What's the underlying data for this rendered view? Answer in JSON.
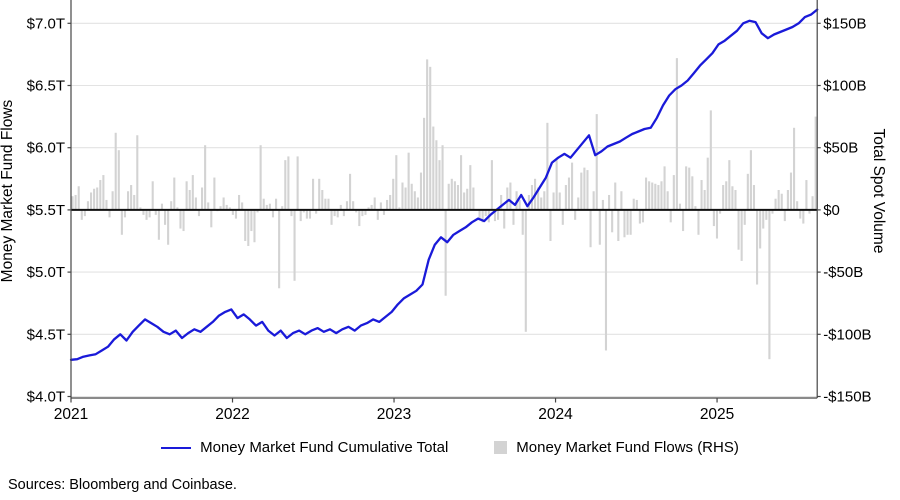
{
  "sources_note": "Sources: Bloomberg and Coinbase.",
  "colors": {
    "line": "#1a1ad9",
    "bar": "#d3d3d3",
    "grid": "#e3e3e3",
    "zero_line": "#111111",
    "axis": "#454545",
    "text": "#000000"
  },
  "chart_data": {
    "type": "line+bar",
    "title": "",
    "left_axis": {
      "label": "Money Market Fund Flows",
      "tick_labels": [
        "$7.0T",
        "$6.5T",
        "$6.0T",
        "$5.5T",
        "$5.0T",
        "$4.5T",
        "$4.0T"
      ],
      "tick_values": [
        7.0,
        6.5,
        6.0,
        5.5,
        5.0,
        4.5,
        4.0
      ],
      "range": [
        4.0,
        7.0
      ],
      "unit": "$T"
    },
    "right_axis": {
      "label": "Total Spot Volume",
      "tick_labels": [
        "$150B",
        "$100B",
        "$50B",
        "$0",
        "-$50B",
        "-$100B",
        "-$150B"
      ],
      "tick_values": [
        150,
        100,
        50,
        0,
        -50,
        -100,
        -150
      ],
      "range": [
        -150,
        150
      ],
      "unit": "$B"
    },
    "x_axis": {
      "tick_labels": [
        "2021",
        "2022",
        "2023",
        "2024",
        "2025"
      ],
      "tick_years": [
        2021,
        2022,
        2023,
        2024,
        2025
      ],
      "range_years": [
        2021.0,
        2025.62
      ],
      "grid": false
    },
    "grid": "horizontal-only",
    "legend_position": "bottom-center",
    "legend": [
      {
        "label": "Money Market Fund Cumulative Total",
        "type": "line",
        "color": "#1a1ad9"
      },
      {
        "label": "Money Market Fund Flows (RHS)",
        "type": "square",
        "color": "#d3d3d3"
      }
    ],
    "series": [
      {
        "name": "Money Market Fund Cumulative Total",
        "axis": "left",
        "type": "line",
        "unit": "$T",
        "start_year": 2021.0,
        "cadence_years": 0.03821,
        "values": [
          4.295,
          4.3,
          4.32,
          4.33,
          4.34,
          4.37,
          4.4,
          4.46,
          4.5,
          4.45,
          4.52,
          4.57,
          4.62,
          4.59,
          4.56,
          4.52,
          4.5,
          4.53,
          4.47,
          4.51,
          4.54,
          4.52,
          4.56,
          4.6,
          4.65,
          4.68,
          4.7,
          4.63,
          4.66,
          4.62,
          4.57,
          4.6,
          4.53,
          4.49,
          4.53,
          4.47,
          4.51,
          4.53,
          4.5,
          4.53,
          4.55,
          4.52,
          4.54,
          4.51,
          4.54,
          4.56,
          4.53,
          4.57,
          4.59,
          4.62,
          4.6,
          4.64,
          4.68,
          4.74,
          4.79,
          4.82,
          4.85,
          4.9,
          5.1,
          5.22,
          5.28,
          5.24,
          5.3,
          5.33,
          5.36,
          5.4,
          5.43,
          5.41,
          5.46,
          5.5,
          5.54,
          5.58,
          5.54,
          5.62,
          5.53,
          5.6,
          5.68,
          5.76,
          5.88,
          5.92,
          5.95,
          5.92,
          5.98,
          6.04,
          6.1,
          5.94,
          5.97,
          6.01,
          6.03,
          6.05,
          6.08,
          6.11,
          6.13,
          6.15,
          6.16,
          6.24,
          6.34,
          6.42,
          6.47,
          6.5,
          6.54,
          6.6,
          6.66,
          6.71,
          6.76,
          6.83,
          6.86,
          6.9,
          6.94,
          7.0,
          7.02,
          7.01,
          6.92,
          6.88,
          6.91,
          6.93,
          6.95,
          6.97,
          7.0,
          7.05,
          7.07,
          7.11
        ]
      },
      {
        "name": "Money Market Fund Flows (RHS)",
        "axis": "right",
        "type": "bar",
        "unit": "$B",
        "start_year": 2021.0,
        "cadence_years": 0.019103,
        "values": [
          11,
          12,
          19,
          -8,
          -5,
          7,
          14,
          17,
          18,
          24,
          28,
          8,
          -6,
          15,
          62,
          48,
          -20,
          -6,
          15,
          20,
          12,
          60,
          2,
          -4,
          -8,
          -6,
          23,
          -4,
          -24,
          5,
          -12,
          -28,
          7,
          26,
          2,
          -15,
          -17,
          23,
          16,
          28,
          10,
          -5,
          18,
          52,
          6,
          -14,
          26,
          -1,
          3,
          10,
          4,
          2,
          -4,
          -7,
          12,
          6,
          -25,
          -29,
          -17,
          -26,
          -2,
          52,
          9,
          4,
          5,
          -6,
          9,
          -63,
          3,
          40,
          43,
          -5,
          -57,
          43,
          -9,
          -2,
          -7,
          -7,
          25,
          -3,
          25,
          16,
          9,
          9,
          -12,
          -5,
          -6,
          4,
          -5,
          7,
          29,
          7,
          -2,
          -13,
          -5,
          -4,
          2,
          4,
          10,
          -8,
          6,
          -4,
          8,
          12,
          25,
          44,
          2,
          22,
          18,
          46,
          21,
          15,
          10,
          30,
          74,
          121,
          115,
          67,
          56,
          40,
          52,
          -69,
          21,
          25,
          23,
          20,
          44,
          14,
          17,
          36,
          18,
          0,
          -8,
          -10,
          -5,
          -10,
          40,
          -9,
          -8,
          12,
          -15,
          18,
          22,
          -12,
          15,
          8,
          -20,
          -98,
          12,
          20,
          25,
          18,
          10,
          15,
          70,
          -25,
          14,
          40,
          14,
          -12,
          20,
          26,
          38,
          -8,
          10,
          30,
          34,
          32,
          -30,
          15,
          77,
          -28,
          8,
          -113,
          12,
          -18,
          22,
          -25,
          15,
          -22,
          -20,
          -20,
          9,
          8,
          -11,
          -10,
          26,
          23,
          22,
          21,
          20,
          23,
          35,
          15,
          -10,
          28,
          122,
          5,
          -17,
          35,
          34,
          27,
          3,
          -20,
          24,
          16,
          42,
          80,
          -13,
          -23,
          -3,
          20,
          23,
          40,
          19,
          16,
          -32,
          -41,
          -12,
          29,
          48,
          20,
          -60,
          -31,
          -15,
          -8,
          -120,
          -3,
          9,
          16,
          13,
          -9,
          16,
          30,
          66,
          7,
          -7,
          -11,
          24,
          -3,
          11,
          75
        ]
      }
    ]
  }
}
